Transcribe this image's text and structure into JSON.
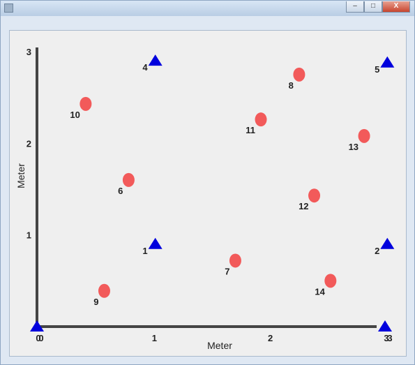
{
  "window": {
    "title": "",
    "controls": {
      "minimize": "–",
      "maximize": "□",
      "close": "X"
    }
  },
  "colors": {
    "anchor": "#0000dd",
    "sensor": "#f25a5a",
    "axis": "#444444"
  },
  "chart_data": {
    "type": "scatter",
    "xlabel": "Meter",
    "ylabel": "Meter",
    "xlim": [
      0,
      3
    ],
    "ylim": [
      0,
      3
    ],
    "x_ticks": [
      "0",
      "1",
      "2",
      "3"
    ],
    "y_ticks": [
      "1",
      "2",
      "3"
    ],
    "grid": false,
    "series": [
      {
        "marker": "triangle",
        "color": "#0000dd",
        "points": [
          {
            "label": "0",
            "x": 0.0,
            "y": 0.0
          },
          {
            "label": "1",
            "x": 1.02,
            "y": 0.9
          },
          {
            "label": "2",
            "x": 3.02,
            "y": 0.9
          },
          {
            "label": "3",
            "x": 3.0,
            "y": 0.0
          },
          {
            "label": "4",
            "x": 1.02,
            "y": 2.9
          },
          {
            "label": "5",
            "x": 3.02,
            "y": 2.88
          }
        ]
      },
      {
        "marker": "circle",
        "color": "#f25a5a",
        "points": [
          {
            "label": "6",
            "x": 0.79,
            "y": 1.6
          },
          {
            "label": "7",
            "x": 1.71,
            "y": 0.72
          },
          {
            "label": "8",
            "x": 2.26,
            "y": 2.75
          },
          {
            "label": "9",
            "x": 0.58,
            "y": 0.39
          },
          {
            "label": "10",
            "x": 0.42,
            "y": 2.43
          },
          {
            "label": "11",
            "x": 1.93,
            "y": 2.26
          },
          {
            "label": "12",
            "x": 2.39,
            "y": 1.43
          },
          {
            "label": "13",
            "x": 2.82,
            "y": 2.08
          },
          {
            "label": "14",
            "x": 2.53,
            "y": 0.5
          }
        ]
      }
    ]
  }
}
